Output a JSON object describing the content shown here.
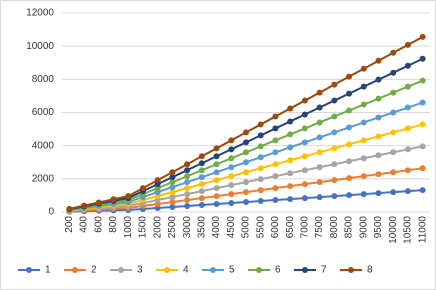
{
  "chart_data": {
    "type": "line",
    "categories": [
      "200",
      "400",
      "600",
      "800",
      "1000",
      "1500",
      "2000",
      "2500",
      "3000",
      "3500",
      "4000",
      "4500",
      "5000",
      "5500",
      "6000",
      "6500",
      "7000",
      "7500",
      "8000",
      "8500",
      "9000",
      "9500",
      "10000",
      "10500",
      "11000"
    ],
    "series": [
      {
        "name": "1",
        "color": "#4472c4",
        "values": [
          24,
          48,
          72,
          96,
          120,
          180,
          240,
          300,
          360,
          420,
          480,
          540,
          600,
          660,
          720,
          780,
          840,
          900,
          960,
          1020,
          1080,
          1140,
          1200,
          1260,
          1320
        ]
      },
      {
        "name": "2",
        "color": "#ed7d31",
        "values": [
          48,
          96,
          144,
          192,
          240,
          360,
          480,
          600,
          720,
          840,
          960,
          1080,
          1200,
          1320,
          1440,
          1560,
          1680,
          1800,
          1920,
          2040,
          2160,
          2280,
          2400,
          2520,
          2640
        ]
      },
      {
        "name": "3",
        "color": "#a5a5a5",
        "values": [
          72,
          144,
          216,
          288,
          360,
          540,
          720,
          900,
          1080,
          1260,
          1440,
          1620,
          1800,
          1980,
          2160,
          2340,
          2520,
          2700,
          2880,
          3060,
          3240,
          3420,
          3600,
          3780,
          3960
        ]
      },
      {
        "name": "4",
        "color": "#ffc000",
        "values": [
          96,
          192,
          288,
          384,
          480,
          720,
          960,
          1200,
          1440,
          1680,
          1920,
          2160,
          2400,
          2640,
          2880,
          3120,
          3360,
          3600,
          3840,
          4080,
          4320,
          4560,
          4800,
          5040,
          5280
        ]
      },
      {
        "name": "5",
        "color": "#5b9bd5",
        "values": [
          120,
          240,
          360,
          480,
          600,
          900,
          1200,
          1500,
          1800,
          2100,
          2400,
          2700,
          3000,
          3300,
          3600,
          3900,
          4200,
          4500,
          4800,
          5100,
          5400,
          5700,
          6000,
          6300,
          6600
        ]
      },
      {
        "name": "6",
        "color": "#70ad47",
        "values": [
          144,
          288,
          432,
          576,
          720,
          1080,
          1440,
          1800,
          2160,
          2520,
          2880,
          3240,
          3600,
          3960,
          4320,
          4680,
          5040,
          5400,
          5760,
          6120,
          6480,
          6840,
          7200,
          7560,
          7920
        ]
      },
      {
        "name": "7",
        "color": "#264478",
        "values": [
          168,
          336,
          504,
          672,
          840,
          1260,
          1680,
          2100,
          2520,
          2940,
          3360,
          3780,
          4200,
          4620,
          5040,
          5460,
          5880,
          6300,
          6720,
          7140,
          7560,
          7980,
          8400,
          8820,
          9240
        ]
      },
      {
        "name": "8",
        "color": "#9e480e",
        "values": [
          192,
          384,
          576,
          768,
          960,
          1440,
          1920,
          2400,
          2880,
          3360,
          3840,
          4320,
          4800,
          5280,
          5760,
          6240,
          6720,
          7200,
          7680,
          8160,
          8640,
          9120,
          9600,
          10080,
          10560
        ]
      }
    ],
    "ylim": [
      0,
      12000
    ],
    "yticks": [
      0,
      2000,
      4000,
      6000,
      8000,
      10000,
      12000
    ],
    "grid": true
  }
}
